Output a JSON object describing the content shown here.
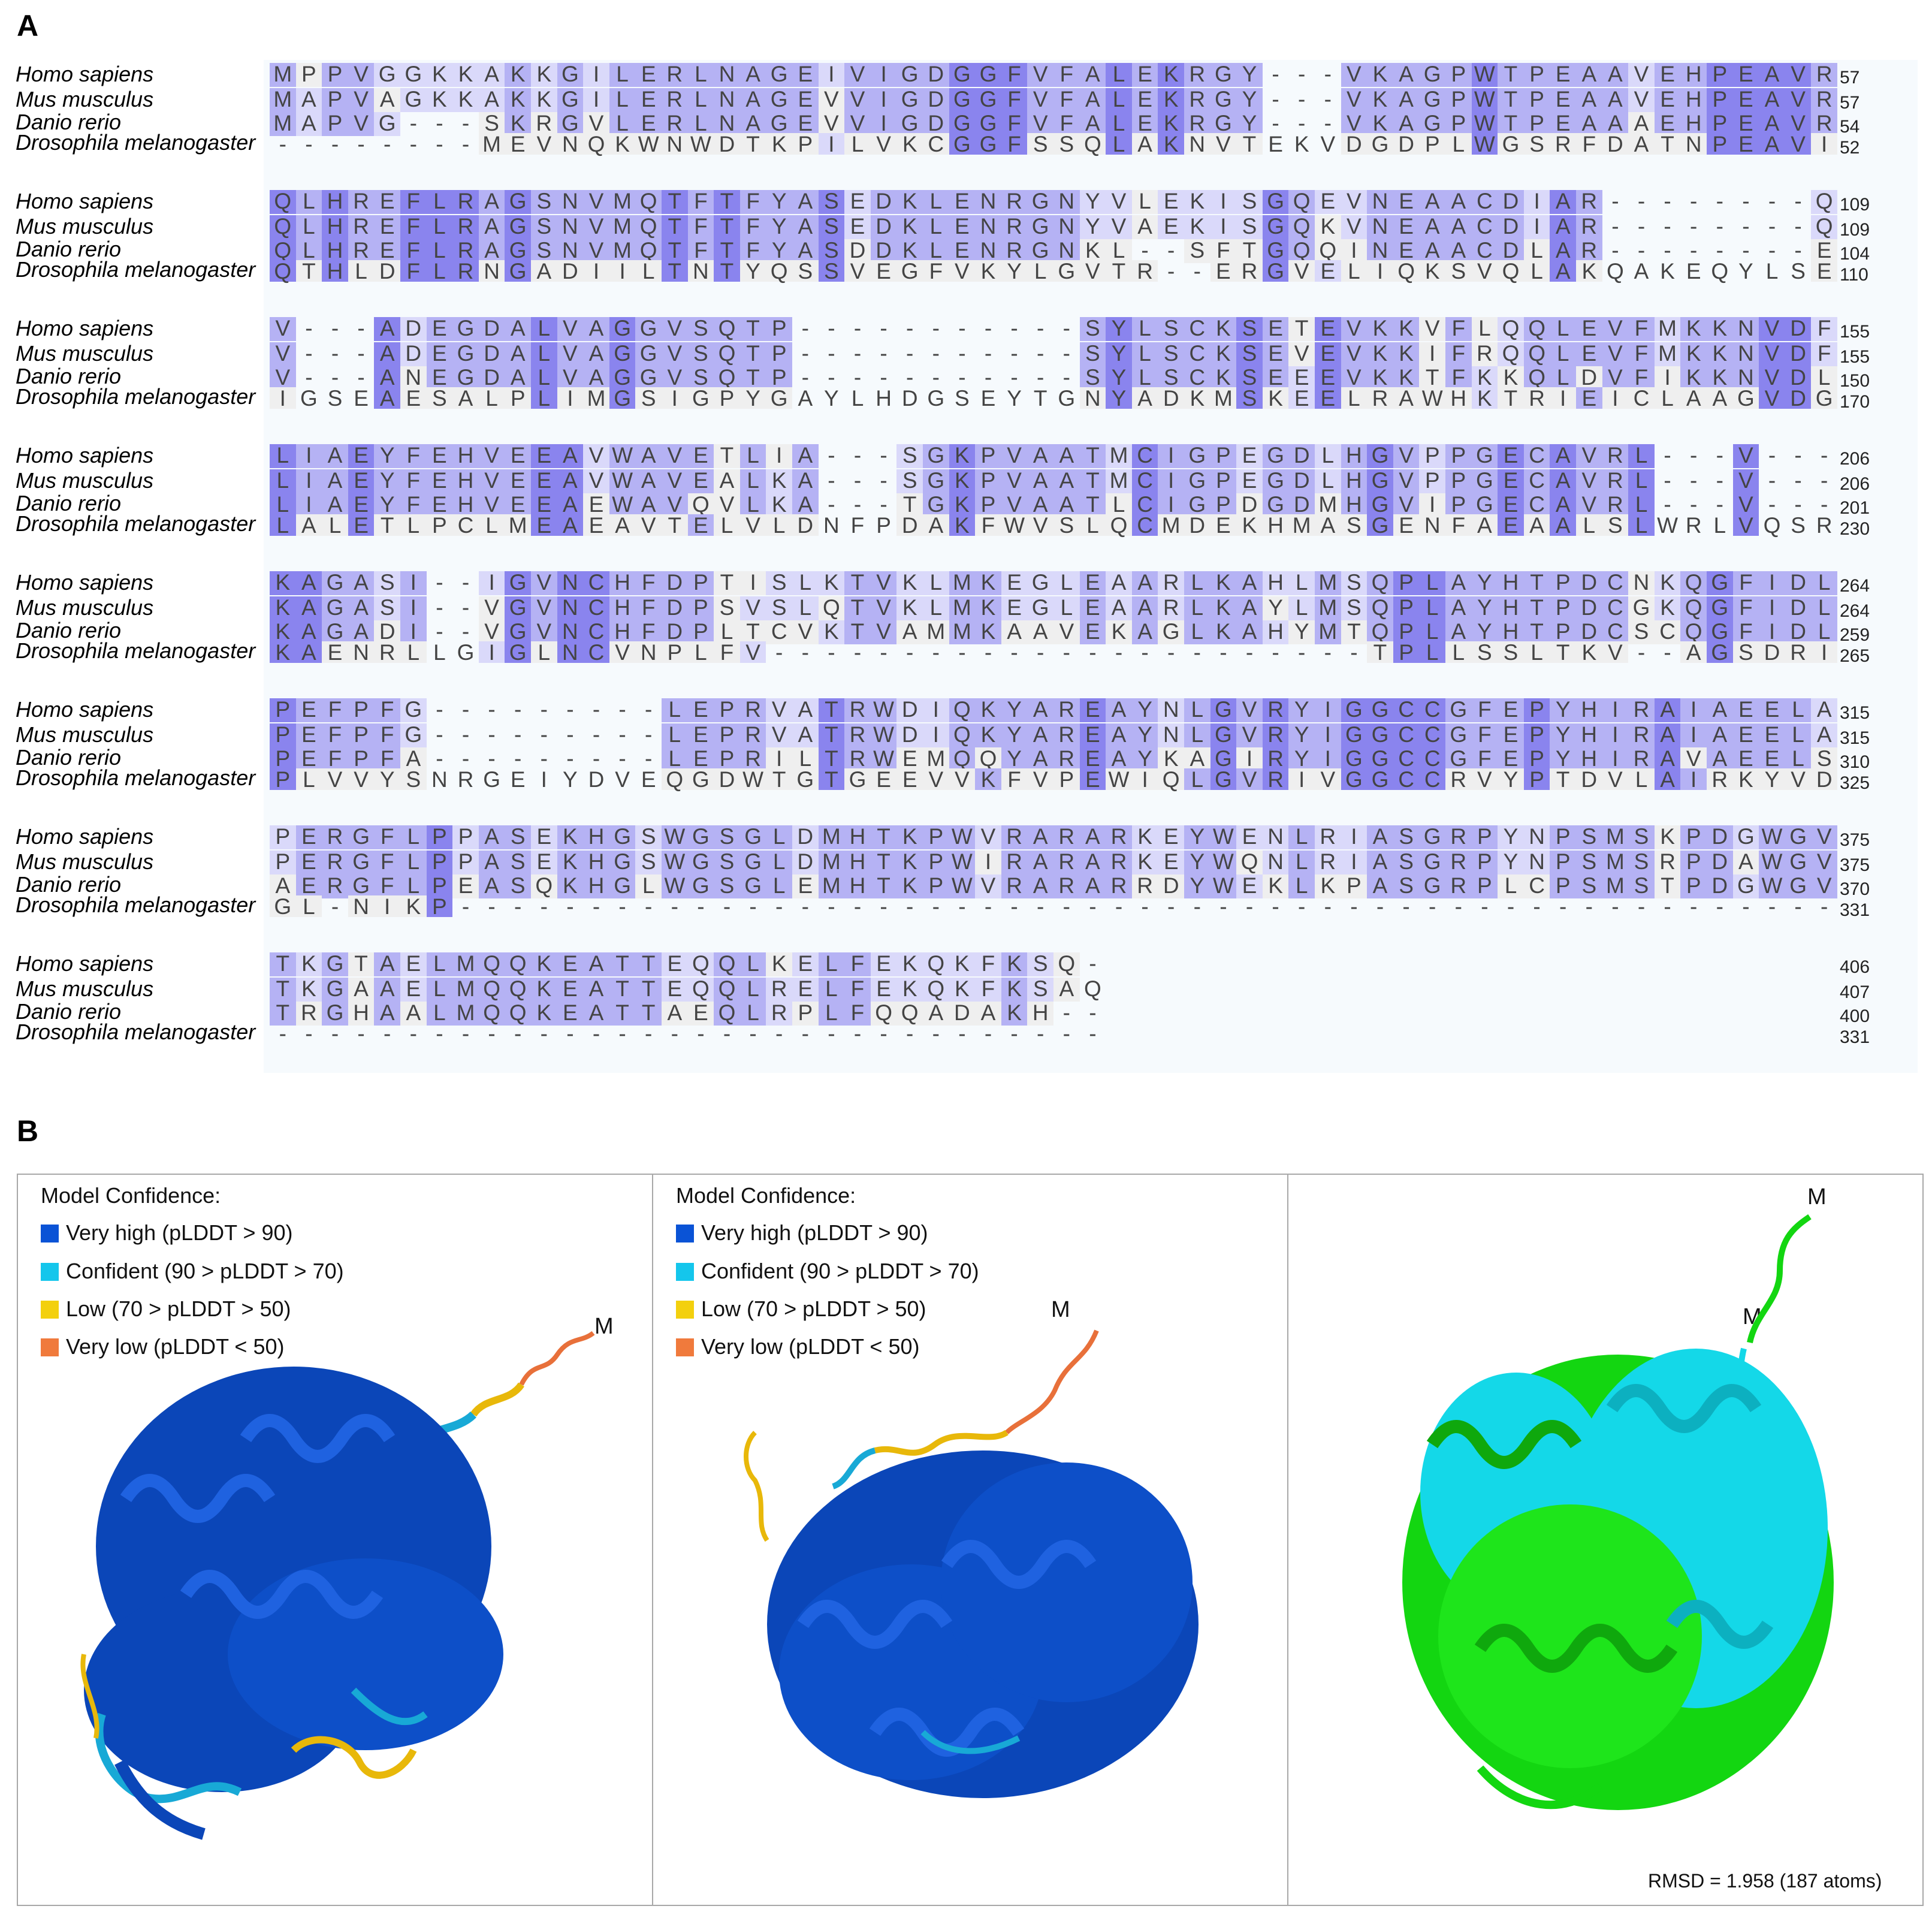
{
  "panel_a": {
    "label": "A",
    "species": [
      "Homo sapiens",
      "Mus musculus",
      "Danio rerio",
      "Drosophila melanogaster"
    ],
    "blocks": [
      {
        "rows": [
          {
            "seq": "MPPVGGKKAKKGILERLNAGEIVIGDGGFVFALEKRGY---VKAGPWTPEAAVEHPEAVR",
            "end": "57"
          },
          {
            "seq": "MAPVAGKKAKKGILERLNAGEVVIGDGGFVFALEKRGY---VKAGPWTPEAAVEHPEAVR",
            "end": "57"
          },
          {
            "seq": "MAPVG---SKRGVLERLNAGEVVIGDGGFVFALEKRGY---VKAGPWTPEAAAEHPEAVR",
            "end": "54"
          },
          {
            "seq": "--------MEVNQKWNWDTKPILVKCGGFSSQLAKNVTEKVDGDPLWGSRFDATNPEAVI",
            "end": "52"
          }
        ]
      },
      {
        "rows": [
          {
            "seq": "QLHREFLRAGSNVMQTFTFYASEDKLENRGNYVLEKISGQEVNEAACDIAR--------Q",
            "end": "109"
          },
          {
            "seq": "QLHREFLRAGSNVMQTFTFYASEDKLENRGNYVAEKISGQKVNEAACDIAR--------Q",
            "end": "109"
          },
          {
            "seq": "QLHREFLRAGSNVMQTFTFYASDDKLENRGNKL--SFTGQQINEAACDLAR--------E",
            "end": "104"
          },
          {
            "seq": "QTHLDFLRNGADIILTNTYQSSVEGFVKYLGVTR--ERGVELIQKSVQLAKQAKEQYLSE",
            "end": "110"
          }
        ]
      },
      {
        "rows": [
          {
            "seq": "V---ADEGDALVAGGVSQTP-----------SYLSCKSETEVKKVFLQQLEVFMKKNVDF",
            "end": "155"
          },
          {
            "seq": "V---ADEGDALVAGGVSQTP-----------SYLSCKSEVEVKKIFRQQLEVFMKKNVDF",
            "end": "155"
          },
          {
            "seq": "V---ANEGDALVAGGVSQTP-----------SYLSCKSEEEVKKTFKKQLDVFIKKNVDL",
            "end": "150"
          },
          {
            "seq": "IGSEAESALPLIMGSIGPYGAYLHDGSEYTGNYADKMSKEELRAWHKTRIEICLAAGVDG",
            "end": "170"
          }
        ]
      },
      {
        "rows": [
          {
            "seq": "LIAEYFEHVEEAVWAVETLIA---SGKPVAATMCIGPEGDLHGVPPGECAVRL---V---",
            "end": "206"
          },
          {
            "seq": "LIAEYFEHVEEAVWAVEALKA---SGKPVAATMCIGPEGDLHGVPPGECAVRL---V---",
            "end": "206"
          },
          {
            "seq": "LIAEYFEHVEEAEWAVQVLKA---TGKPVAATLCIGPDGDMHGVIPGECAVRL---V---",
            "end": "201"
          },
          {
            "seq": "LALETLPCLMEAEAVTELVLDNFPDAKFWVSLQCMDEKHMASGENFAEAALSLWRLVQSR",
            "end": "230"
          }
        ]
      },
      {
        "rows": [
          {
            "seq": "KAGASI--IGVNCHFDPTISLKTVKLMKEGLEAARLKAHLMSQPLAYHTPDCNKQGFIDL",
            "end": "264"
          },
          {
            "seq": "KAGASI--VGVNCHFDPSVSLQTVKLMKEGLEAARLKAYLMSQPLAYHTPDCGKQGFIDL",
            "end": "264"
          },
          {
            "seq": "KAGADI--VGVNCHFDPLTCVKTVAMMKAAVEKAGLKAHYMTQPLAYHTPDCSCQGFIDL",
            "end": "259"
          },
          {
            "seq": "KAENRLLGIGLNCVNPLFV-----------------------TPLLSSLTKV--AGSDRI",
            "end": "265"
          }
        ]
      },
      {
        "rows": [
          {
            "seq": "PEFPFG---------LEPRVATRWDIQKYAREAYNLGVRYIGGCCGFEPYHIRAIAEELA",
            "end": "315"
          },
          {
            "seq": "PEFPFG---------LEPRVATRWDIQKYAREAYNLGVRYIGGCCGFEPYHIRAIAEELA",
            "end": "315"
          },
          {
            "seq": "PEFPFA---------LEPRILTRWEMQQYAREAYKAGIRYIGGCCGFEPYHIRAVAEELS",
            "end": "310"
          },
          {
            "seq": "PLVVYSNRGEIYDVEQGDWTGTGEEVVKFVPEWIQLGVRIVGGCCRVYPTDVLAIRKYVD",
            "end": "325"
          }
        ]
      },
      {
        "rows": [
          {
            "seq": "PERGFLPPASEKHGSWGSGLDMHTKPWVRARARKEYWENLRIASGRPYNPSMSKPDGWGV",
            "end": "375"
          },
          {
            "seq": "PERGFLPPASEKHGSWGSGLDMHTKPWIRARARKEYWQNLRIASGRPYNPSMSRPDAWGV",
            "end": "375"
          },
          {
            "seq": "AERGFLPEASQKHGLWGSGLEMHTKPWVRARARRDYWEKLKPASGRPLCPSMSTPDGWGV",
            "end": "370"
          },
          {
            "seq": "GL-NIKP-----------------------------------------------------",
            "end": "331"
          }
        ]
      },
      {
        "rows": [
          {
            "seq": "TKGTAELMQQKEATTEQQLKELFEKQKFKSQ-",
            "end": "406"
          },
          {
            "seq": "TKGAAELMQQKEATTEQQLRELFEKQKFKSAQ",
            "end": "407"
          },
          {
            "seq": "TRGHAALMQQKEATTAEQLRPLFQQADAKH--",
            "end": "400"
          },
          {
            "seq": "--------------------------------",
            "end": "331"
          }
        ]
      }
    ],
    "colors": {
      "identical": "#8a84ee",
      "strong": "#b5b2f4",
      "weak": "#dad9fa",
      "gap_bg": "#efefef"
    }
  },
  "panel_b": {
    "label": "B",
    "legend_title": "Model Confidence:",
    "legend": [
      {
        "label": "Very high (pLDDT > 90)",
        "color": "#0a53d6"
      },
      {
        "label": "Confident (90 > pLDDT > 70)",
        "color": "#14c6ec"
      },
      {
        "label": "Low (70 > pLDDT > 50)",
        "color": "#f3d00e"
      },
      {
        "label": "Very low (pLDDT < 50)",
        "color": "#f07a3c"
      }
    ],
    "terminus_label": "M",
    "rmsd_text": "RMSD = 1.958 (187 atoms)",
    "structure_colors": {
      "very_high": "#0b46b8",
      "confident": "#18a9d6",
      "low": "#e8b80a",
      "very_low": "#e8703a",
      "green": "#13d611",
      "cyan": "#14d8e8"
    }
  }
}
